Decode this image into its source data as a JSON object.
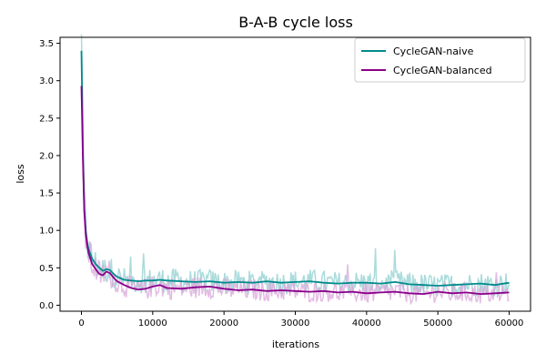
{
  "chart_data": {
    "type": "line",
    "title": "B-A-B cycle loss",
    "xlabel": "iterations",
    "ylabel": "loss",
    "xlim": [
      -3000,
      63000
    ],
    "ylim": [
      -0.08,
      3.58
    ],
    "x_ticks": [
      0,
      10000,
      20000,
      30000,
      40000,
      50000,
      60000
    ],
    "y_ticks": [
      0.0,
      0.5,
      1.0,
      1.5,
      2.0,
      2.5,
      3.0,
      3.5
    ],
    "grid": false,
    "legend": "top-right",
    "series": [
      {
        "name": "CycleGAN-naive",
        "color": "#008B8B",
        "raw_color": "#8FCFCF",
        "x": [
          0,
          200,
          400,
          600,
          800,
          1000,
          1500,
          2000,
          2500,
          3000,
          3500,
          4000,
          4500,
          5000,
          6000,
          7000,
          8000,
          9000,
          10000,
          11000,
          12000,
          14000,
          16000,
          18000,
          20000,
          22000,
          24000,
          26000,
          28000,
          30000,
          32000,
          34000,
          36000,
          38000,
          40000,
          42000,
          44000,
          46000,
          48000,
          50000,
          52000,
          54000,
          56000,
          58000,
          60000
        ],
        "values": [
          3.4,
          2.05,
          1.3,
          1.0,
          0.85,
          0.75,
          0.62,
          0.55,
          0.5,
          0.46,
          0.48,
          0.47,
          0.42,
          0.38,
          0.34,
          0.33,
          0.32,
          0.33,
          0.33,
          0.34,
          0.33,
          0.32,
          0.31,
          0.32,
          0.3,
          0.31,
          0.3,
          0.32,
          0.3,
          0.31,
          0.32,
          0.3,
          0.29,
          0.3,
          0.3,
          0.29,
          0.31,
          0.28,
          0.27,
          0.26,
          0.27,
          0.28,
          0.29,
          0.27,
          0.3
        ]
      },
      {
        "name": "CycleGAN-balanced",
        "color": "#8B008B",
        "raw_color": "#D9A6D9",
        "x": [
          0,
          200,
          400,
          600,
          800,
          1000,
          1500,
          2000,
          2500,
          3000,
          3500,
          4000,
          4500,
          5000,
          6000,
          7000,
          8000,
          9000,
          10000,
          11000,
          12000,
          14000,
          16000,
          18000,
          20000,
          22000,
          24000,
          26000,
          28000,
          30000,
          32000,
          34000,
          36000,
          38000,
          40000,
          42000,
          44000,
          46000,
          48000,
          50000,
          52000,
          54000,
          56000,
          58000,
          60000
        ],
        "values": [
          2.93,
          1.95,
          1.25,
          0.95,
          0.8,
          0.7,
          0.55,
          0.48,
          0.42,
          0.4,
          0.45,
          0.43,
          0.37,
          0.32,
          0.27,
          0.23,
          0.21,
          0.22,
          0.25,
          0.27,
          0.23,
          0.22,
          0.24,
          0.25,
          0.22,
          0.2,
          0.21,
          0.19,
          0.2,
          0.19,
          0.18,
          0.19,
          0.17,
          0.18,
          0.16,
          0.17,
          0.18,
          0.16,
          0.15,
          0.18,
          0.16,
          0.17,
          0.15,
          0.16,
          0.17
        ]
      }
    ]
  }
}
